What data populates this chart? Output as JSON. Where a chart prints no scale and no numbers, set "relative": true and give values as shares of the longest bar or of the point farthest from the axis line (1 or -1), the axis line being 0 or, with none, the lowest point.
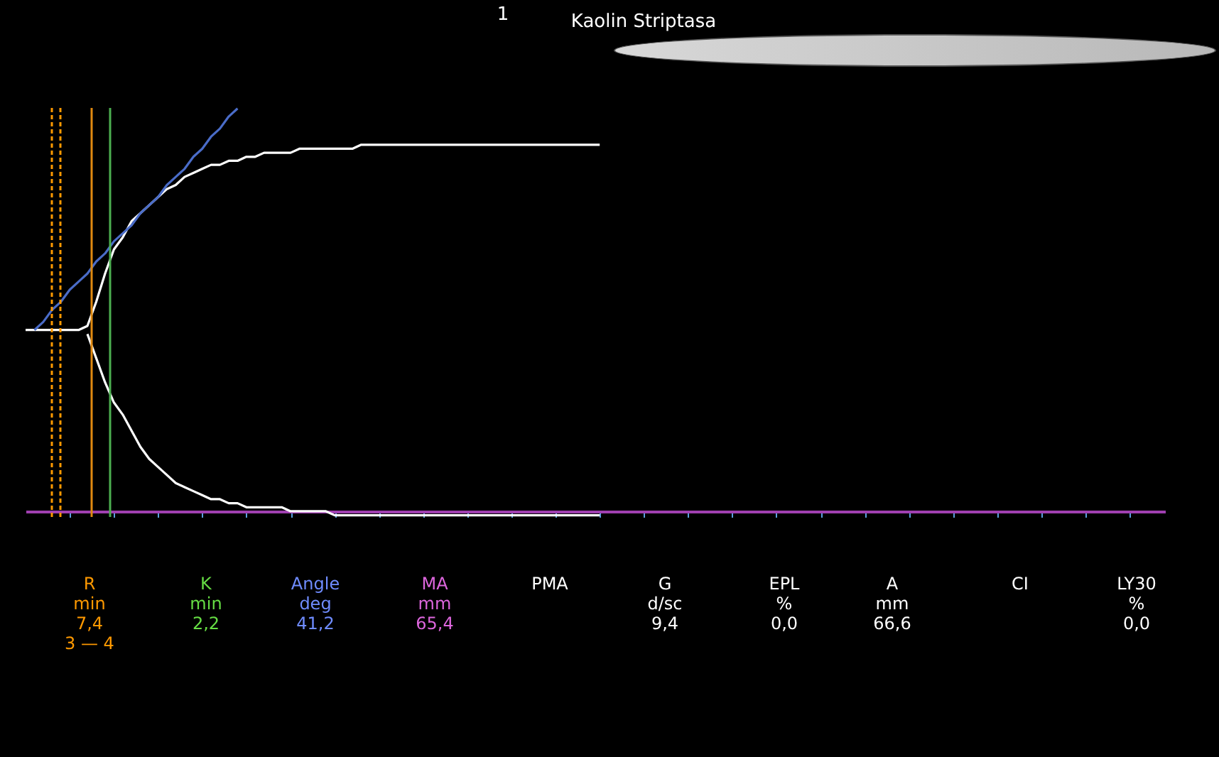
{
  "chart_data": {
    "type": "line",
    "title": "Kaolin Striptasa",
    "relative": true,
    "grid": false,
    "legend": false,
    "marker": "none",
    "categories": [
      null,
      null,
      null,
      null,
      null,
      null,
      null,
      null,
      null,
      null,
      null,
      null,
      null,
      null,
      null,
      null,
      null,
      null,
      null,
      null,
      null,
      null,
      null,
      null,
      null,
      null,
      null,
      null,
      null,
      null,
      null,
      null,
      null,
      null,
      null,
      null,
      null,
      null,
      null,
      null,
      null,
      null,
      null,
      null,
      null,
      null,
      null,
      null,
      null,
      null,
      null,
      null,
      null,
      null,
      null,
      null,
      null,
      null,
      null,
      null,
      null,
      null,
      null,
      null,
      null,
      null,
      null,
      null,
      null,
      null,
      null,
      null,
      null,
      null,
      null,
      null,
      null,
      null,
      null,
      null,
      null,
      null,
      null,
      null,
      null,
      null,
      null,
      null,
      null,
      null,
      null,
      null,
      null,
      null,
      null,
      null,
      null,
      null,
      null,
      null,
      null,
      null,
      null,
      null,
      null,
      null,
      null,
      null,
      null,
      null,
      null,
      null,
      null,
      null,
      null,
      null,
      null,
      null,
      null,
      null,
      null,
      null,
      null,
      null,
      null,
      null,
      null,
      null,
      null,
      null
    ],
    "series": [
      {
        "color": "#ffffff",
        "values": [
          0.45,
          0.45,
          0.45,
          0.45,
          0.45,
          0.45,
          0.45,
          0.46,
          0.52,
          0.59,
          0.65,
          0.68,
          0.72,
          0.74,
          0.76,
          0.78,
          0.8,
          0.81,
          0.83,
          0.84,
          0.85,
          0.86,
          0.86,
          0.87,
          0.87,
          0.88,
          0.88,
          0.89,
          0.89,
          0.89,
          0.89,
          0.9,
          0.9,
          0.9,
          0.9,
          0.9,
          0.9,
          0.9,
          0.91,
          0.91,
          0.91,
          0.91,
          0.91,
          0.91,
          0.91,
          0.91,
          0.91,
          0.91,
          0.91,
          0.91,
          0.91,
          0.91,
          0.91,
          0.91,
          0.91,
          0.91,
          0.91,
          0.91,
          0.91,
          0.91,
          0.91,
          0.91,
          0.91,
          0.91,
          0.91,
          0.91,
          null,
          null,
          null,
          null,
          null,
          null,
          null,
          null,
          null,
          null,
          null,
          null,
          null,
          null,
          null,
          null,
          null,
          null,
          null,
          null,
          null,
          null,
          null,
          null,
          null,
          null,
          null,
          null,
          null,
          null,
          null,
          null,
          null,
          null,
          null,
          null,
          null,
          null,
          null,
          null,
          null,
          null,
          null,
          null,
          null,
          null,
          null,
          null,
          null,
          null,
          null,
          null,
          null,
          null,
          null,
          null,
          null,
          null,
          null,
          null,
          null,
          null,
          null,
          null
        ]
      },
      {
        "color": "#ffffff",
        "values": [
          null,
          null,
          null,
          null,
          null,
          null,
          null,
          0.44,
          0.38,
          0.32,
          0.27,
          0.24,
          0.2,
          0.16,
          0.13,
          0.11,
          0.09,
          0.07,
          0.06,
          0.05,
          0.04,
          0.03,
          0.03,
          0.02,
          0.02,
          0.01,
          0.01,
          0.01,
          0.01,
          0.01,
          0,
          0,
          0,
          0,
          0,
          -0.01,
          -0.01,
          -0.01,
          -0.01,
          -0.01,
          -0.01,
          -0.01,
          -0.01,
          -0.01,
          -0.01,
          -0.01,
          -0.01,
          -0.01,
          -0.01,
          -0.01,
          -0.01,
          -0.01,
          -0.01,
          -0.01,
          -0.01,
          -0.01,
          -0.01,
          -0.01,
          -0.01,
          -0.01,
          -0.01,
          -0.01,
          -0.01,
          -0.01,
          -0.01,
          -0.01,
          null,
          null,
          null,
          null,
          null,
          null,
          null,
          null,
          null,
          null,
          null,
          null,
          null,
          null,
          null,
          null,
          null,
          null,
          null,
          null,
          null,
          null,
          null,
          null,
          null,
          null,
          null,
          null,
          null,
          null,
          null,
          null,
          null,
          null,
          null,
          null,
          null,
          null,
          null,
          null,
          null,
          null,
          null,
          null,
          null,
          null,
          null,
          null,
          null,
          null,
          null,
          null,
          null,
          null,
          null,
          null,
          null,
          null,
          null,
          null,
          null,
          null,
          null,
          null
        ]
      },
      {
        "color": "#4a6cc8",
        "values": [
          null,
          0.45,
          0.47,
          0.5,
          0.52,
          0.55,
          0.57,
          0.59,
          0.62,
          0.64,
          0.67,
          0.69,
          0.71,
          0.74,
          0.76,
          0.78,
          0.81,
          0.83,
          0.85,
          0.88,
          0.9,
          0.93,
          0.95,
          0.98,
          1,
          null,
          null,
          null,
          null,
          null,
          null,
          null,
          null,
          null,
          null,
          null,
          null,
          null,
          null,
          null,
          null,
          null,
          null,
          null,
          null,
          null,
          null,
          null,
          null,
          null,
          null,
          null,
          null,
          null,
          null,
          null,
          null,
          null,
          null,
          null,
          null,
          null,
          null,
          null,
          null,
          null,
          null,
          null,
          null,
          null,
          null,
          null,
          null,
          null,
          null,
          null,
          null,
          null,
          null,
          null,
          null,
          null,
          null,
          null,
          null,
          null,
          null,
          null,
          null,
          null,
          null,
          null,
          null,
          null,
          null,
          null,
          null,
          null,
          null,
          null,
          null,
          null,
          null,
          null,
          null,
          null,
          null,
          null,
          null,
          null,
          null,
          null,
          null,
          null,
          null,
          null,
          null,
          null,
          null,
          null,
          null,
          null,
          null,
          null,
          null,
          null,
          null,
          null,
          null,
          null
        ]
      }
    ],
    "annotations": [
      "1",
      "R\nmin\n7,4\n3 — 4",
      "K\nmin\n2,2",
      "Angle\ndeg\n41,2",
      "MA\nmm\n65,4",
      "PMA",
      "G\nd/sc\n9,4",
      "EPL\n%\n0,0",
      "A\nmm\n66,6",
      "CI",
      "LY30\n%\n0,0"
    ]
  }
}
